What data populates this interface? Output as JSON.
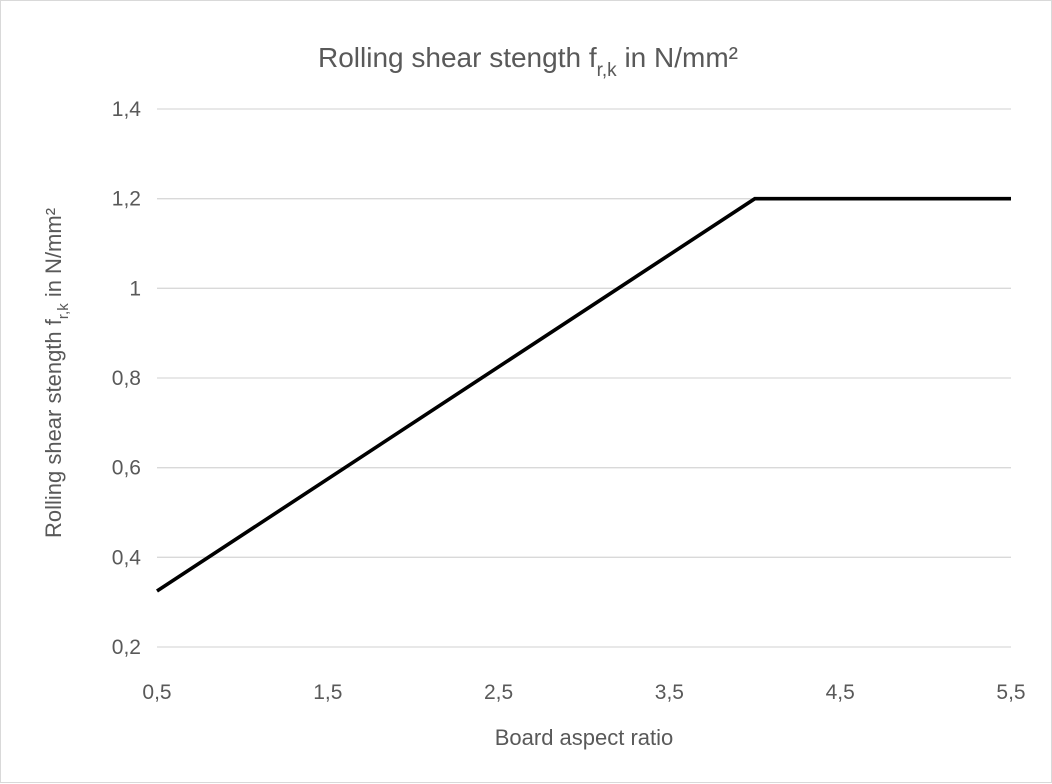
{
  "chart_data": {
    "type": "line",
    "title_main": "Rolling shear stength f",
    "title_sub": "r,k",
    "title_unit": " in N/mm²",
    "xlabel": "Board aspect ratio",
    "ylabel_main": "Rolling shear stength f",
    "ylabel_sub": "r,k",
    "ylabel_unit": " in N/mm²",
    "x_ticks": [
      "0,5",
      "1,5",
      "2,5",
      "3,5",
      "4,5",
      "5,5"
    ],
    "y_ticks": [
      "0,2",
      "0,4",
      "0,6",
      "0,8",
      "1",
      "1,2",
      "1,4"
    ],
    "xlim": [
      0.5,
      5.5
    ],
    "ylim": [
      0.2,
      1.4
    ],
    "grid": "horizontal",
    "series": [
      {
        "color": "#000000",
        "points": [
          [
            0.5,
            0.325
          ],
          [
            4.0,
            1.2
          ],
          [
            5.5,
            1.2
          ]
        ]
      }
    ]
  }
}
